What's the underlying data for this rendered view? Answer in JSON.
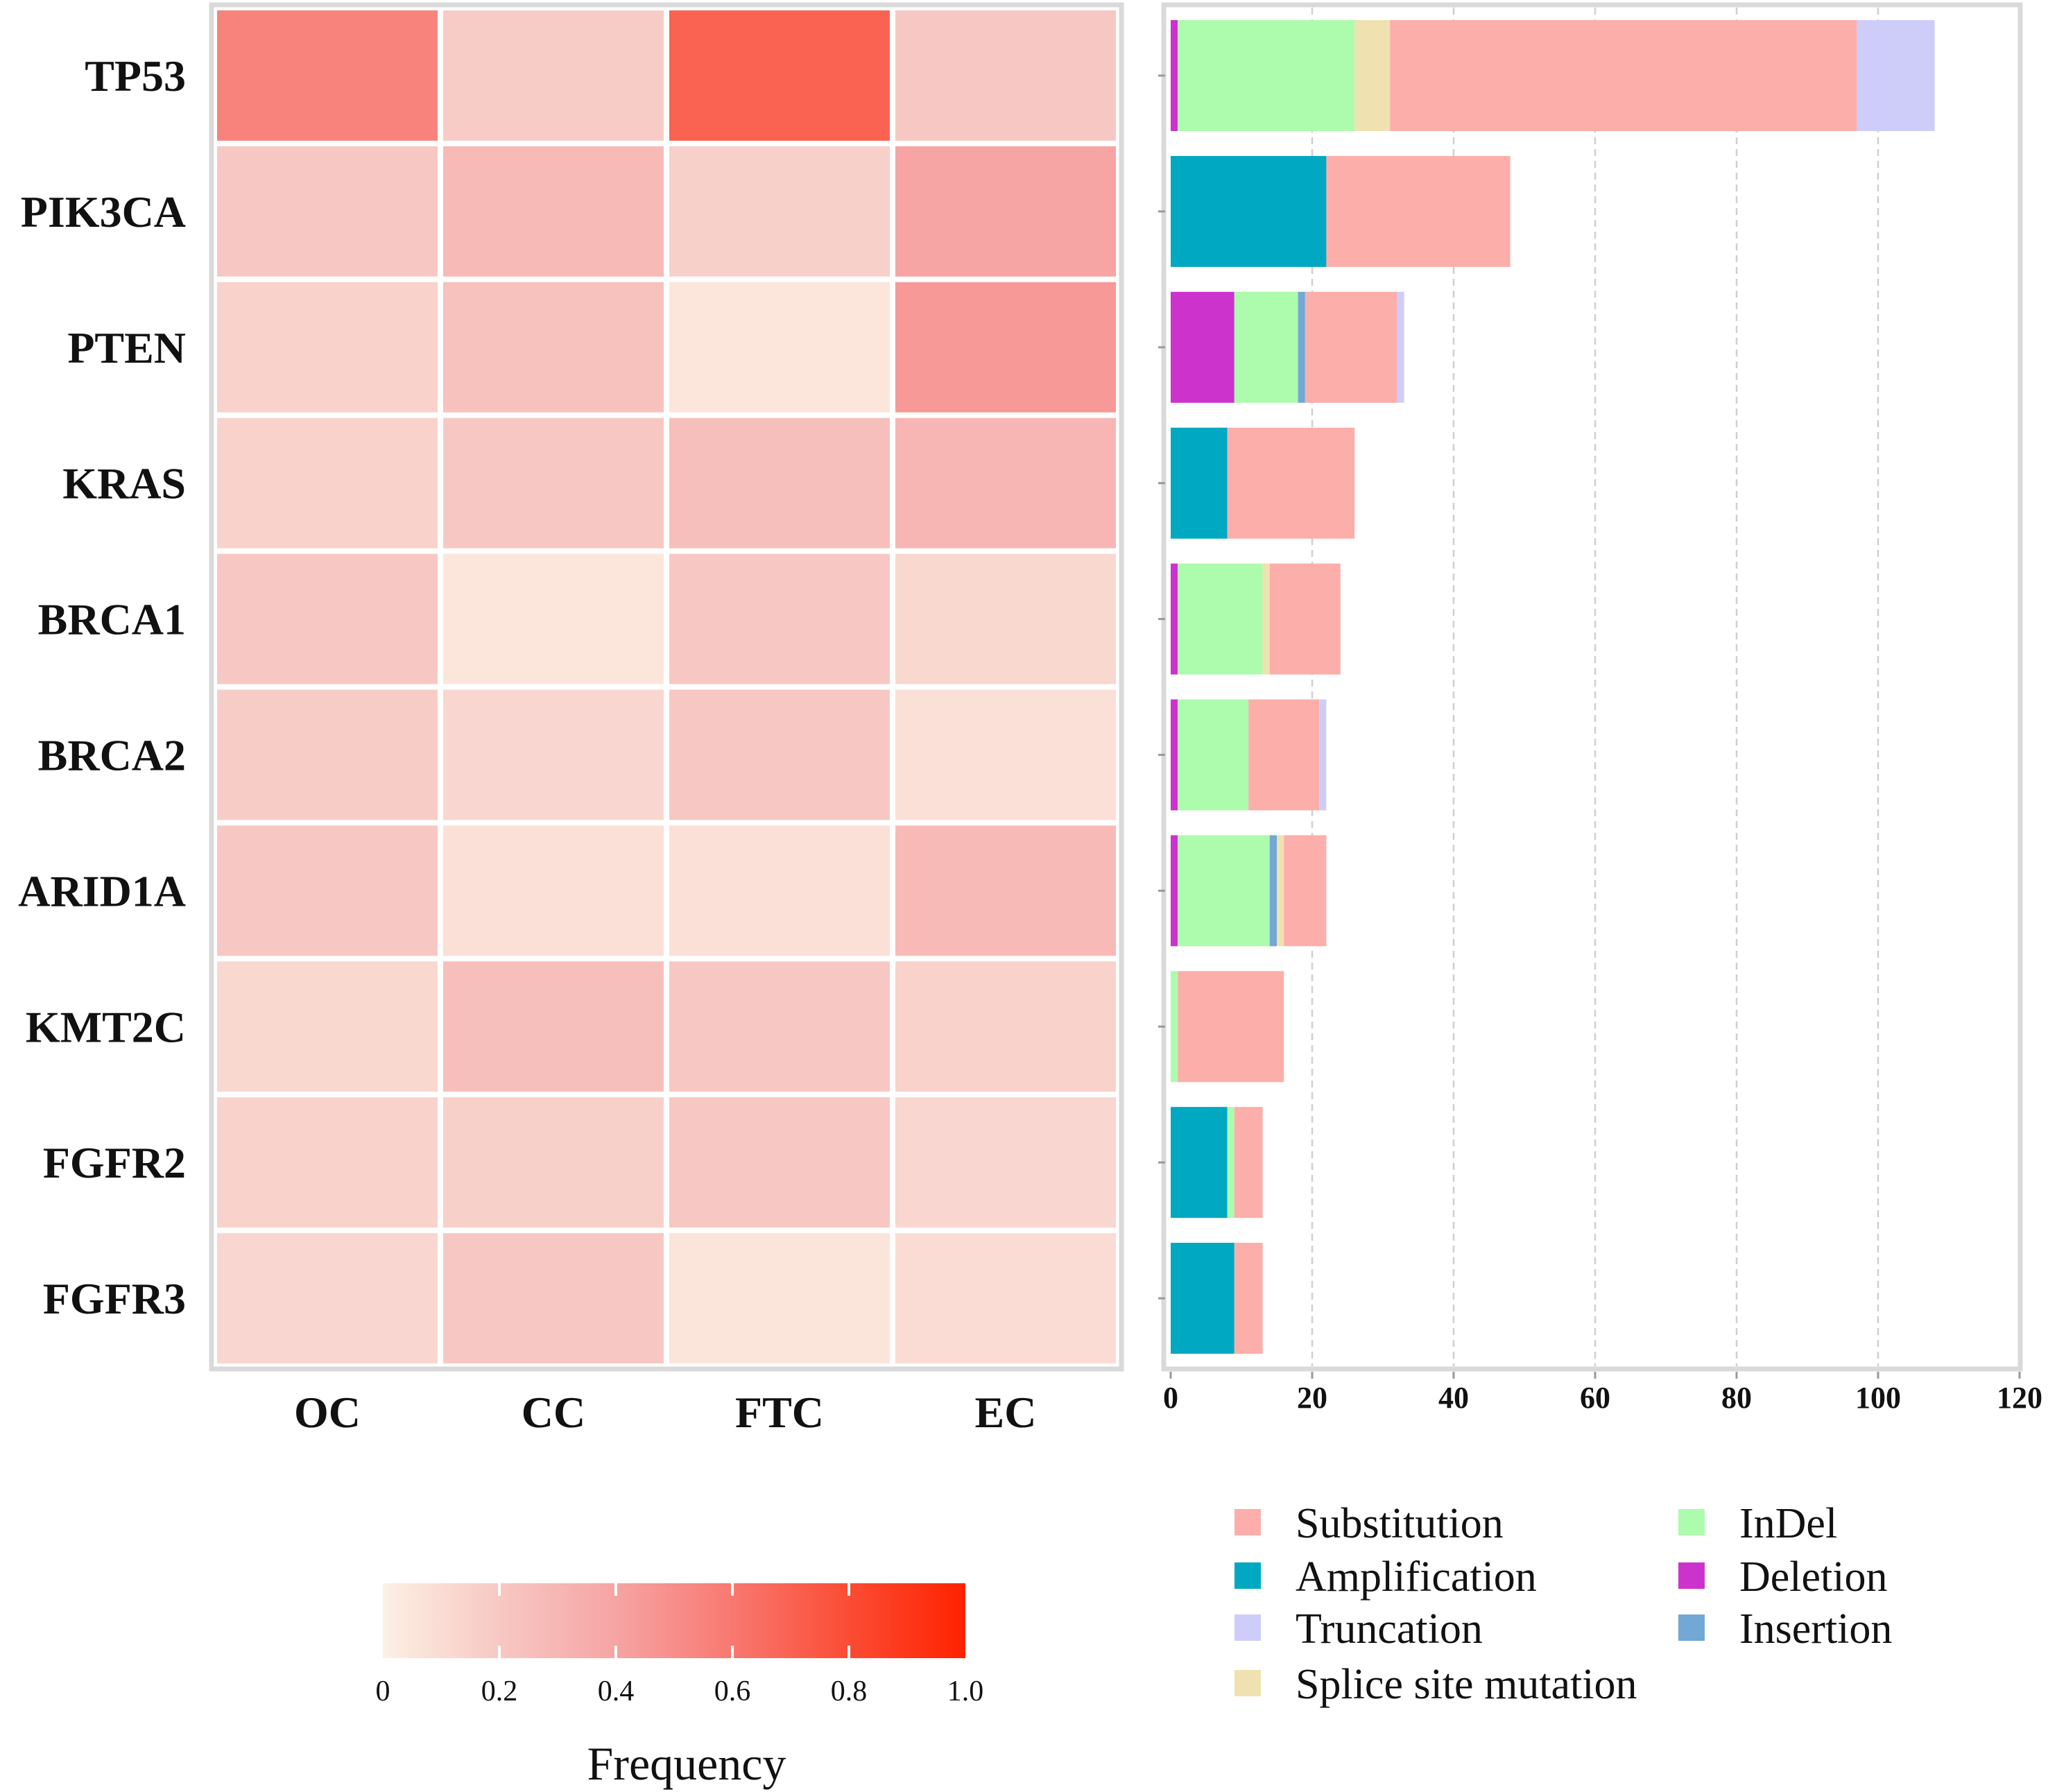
{
  "chart_data": [
    {
      "type": "heatmap",
      "rows": [
        "TP53",
        "PIK3CA",
        "PTEN",
        "KRAS",
        "BRCA1",
        "BRCA2",
        "ARID1A",
        "KMT2C",
        "FGFR2",
        "FGFR3"
      ],
      "columns": [
        "OC",
        "CC",
        "FTC",
        "EC"
      ],
      "values": [
        [
          0.55,
          0.18,
          0.7,
          0.2
        ],
        [
          0.2,
          0.28,
          0.16,
          0.4
        ],
        [
          0.15,
          0.24,
          0.05,
          0.45
        ],
        [
          0.15,
          0.2,
          0.25,
          0.3
        ],
        [
          0.2,
          0.05,
          0.2,
          0.12
        ],
        [
          0.18,
          0.13,
          0.2,
          0.08
        ],
        [
          0.2,
          0.08,
          0.08,
          0.28
        ],
        [
          0.12,
          0.25,
          0.2,
          0.15
        ],
        [
          0.15,
          0.16,
          0.2,
          0.13
        ],
        [
          0.13,
          0.2,
          0.06,
          0.1
        ]
      ],
      "colorbar": {
        "title": "Frequency",
        "range": [
          0,
          1.0
        ],
        "ticks": [
          "0",
          "0.2",
          "0.4",
          "0.6",
          "0.8",
          "1.0"
        ],
        "tick_values": [
          0,
          0.2,
          0.4,
          0.6,
          0.8,
          1.0
        ],
        "colors": [
          "#fdf0e4",
          "#f7c8c3",
          "#f6a4a4",
          "#f87870",
          "#fb4c34",
          "#ff2200"
        ]
      }
    },
    {
      "type": "bar",
      "orientation": "horizontal",
      "stacked": true,
      "categories": [
        "TP53",
        "PIK3CA",
        "PTEN",
        "KRAS",
        "BRCA1",
        "BRCA2",
        "ARID1A",
        "KMT2C",
        "FGFR2",
        "FGFR3"
      ],
      "series": [
        {
          "name": "Deletion",
          "color": "#cc33cc",
          "values": [
            1,
            0,
            9,
            0,
            1,
            1,
            1,
            0,
            0,
            0
          ]
        },
        {
          "name": "Amplification",
          "color": "#00a8c2",
          "values": [
            0,
            22,
            0,
            8,
            0,
            0,
            0,
            0,
            8,
            9
          ]
        },
        {
          "name": "InDel",
          "color": "#adfbad",
          "values": [
            25,
            0,
            9,
            0,
            12,
            10,
            13,
            1,
            1,
            0
          ]
        },
        {
          "name": "Insertion",
          "color": "#72a7d6",
          "values": [
            0,
            0,
            1,
            0,
            0,
            0,
            1,
            0,
            0,
            0
          ]
        },
        {
          "name": "Splice site mutation",
          "color": "#f0e1b0",
          "values": [
            5,
            0,
            0,
            0,
            1,
            0,
            1,
            0,
            0,
            0
          ]
        },
        {
          "name": "Substitution",
          "color": "#fcaeaa",
          "values": [
            66,
            26,
            13,
            18,
            10,
            10,
            6,
            15,
            4,
            4
          ]
        },
        {
          "name": "Truncation",
          "color": "#cecdfa",
          "values": [
            11,
            0,
            1,
            0,
            0,
            1,
            0,
            0,
            0,
            0
          ]
        }
      ],
      "xlim": [
        0,
        120
      ],
      "xticks": [
        "0",
        "20",
        "40",
        "60",
        "80",
        "100",
        "120"
      ],
      "xtick_values": [
        0,
        20,
        40,
        60,
        80,
        100,
        120
      ],
      "grid": "vertical dashed",
      "legend": {
        "placement": "bottom",
        "items": [
          {
            "name": "Substitution",
            "color": "#fcaeaa"
          },
          {
            "name": "InDel",
            "color": "#adfbad"
          },
          {
            "name": "Amplification",
            "color": "#00a8c2"
          },
          {
            "name": "Deletion",
            "color": "#cc33cc"
          },
          {
            "name": "Truncation",
            "color": "#cecdfa"
          },
          {
            "name": "Insertion",
            "color": "#72a7d6"
          },
          {
            "name": "Splice site mutation",
            "color": "#f0e1b0"
          }
        ]
      }
    }
  ]
}
